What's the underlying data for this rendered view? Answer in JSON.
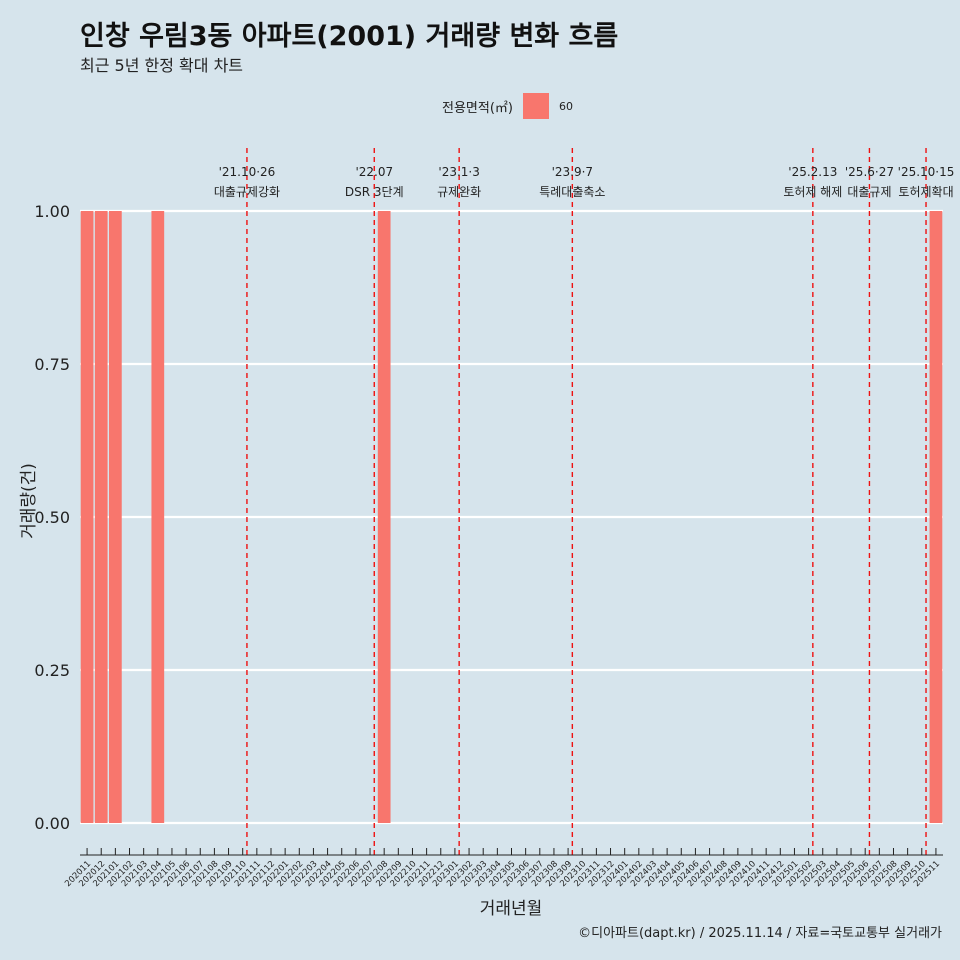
{
  "chart_data": {
    "type": "bar",
    "title": "인창 우림3동 아파트(2001) 거래량 변화 흐름",
    "subtitle": "최근 5년 한정 확대 차트",
    "xlabel": "거래년월",
    "ylabel": "거래량(건)",
    "ylim": [
      0,
      1
    ],
    "yticks": [
      "0.00",
      "0.25",
      "0.50",
      "0.75",
      "1.00"
    ],
    "ytick_values": [
      0,
      0.25,
      0.5,
      0.75,
      1
    ],
    "legend": {
      "title": "전용면적(㎡)",
      "entries": [
        "60"
      ],
      "colors": [
        "#f8766d"
      ],
      "position": "top"
    },
    "categories": [
      "202011",
      "202012",
      "202101",
      "202102",
      "202103",
      "202104",
      "202105",
      "202106",
      "202107",
      "202108",
      "202109",
      "202110",
      "202111",
      "202112",
      "202201",
      "202202",
      "202203",
      "202204",
      "202205",
      "202206",
      "202207",
      "202208",
      "202209",
      "202210",
      "202211",
      "202212",
      "202301",
      "202302",
      "202303",
      "202304",
      "202305",
      "202306",
      "202307",
      "202308",
      "202309",
      "202310",
      "202311",
      "202312",
      "202401",
      "202402",
      "202403",
      "202404",
      "202405",
      "202406",
      "202407",
      "202408",
      "202409",
      "202410",
      "202411",
      "202412",
      "202501",
      "202502",
      "202503",
      "202504",
      "202505",
      "202506",
      "202507",
      "202508",
      "202509",
      "202510",
      "202511"
    ],
    "series": [
      {
        "name": "60",
        "color": "#f8766d",
        "values": [
          1,
          1,
          1,
          0,
          0,
          1,
          0,
          0,
          0,
          0,
          0,
          0,
          0,
          0,
          0,
          0,
          0,
          0,
          0,
          0,
          0,
          1,
          0,
          0,
          0,
          0,
          0,
          0,
          0,
          0,
          0,
          0,
          0,
          0,
          0,
          0,
          0,
          0,
          0,
          0,
          0,
          0,
          0,
          0,
          0,
          0,
          0,
          0,
          0,
          0,
          0,
          0,
          0,
          0,
          0,
          0,
          0,
          0,
          0,
          0,
          1
        ]
      }
    ],
    "annotations": [
      {
        "x": 11.3,
        "date": "'21.10·26",
        "label": "대출규제강화"
      },
      {
        "x": 20.3,
        "date": "'22.07",
        "label": "DSR 3단계"
      },
      {
        "x": 26.3,
        "date": "'23.1·3",
        "label": "규제완화"
      },
      {
        "x": 34.3,
        "date": "'23.9·7",
        "label": "특례대출축소"
      },
      {
        "x": 51.3,
        "date": "'25.2.13",
        "label": "토허제 해제"
      },
      {
        "x": 55.3,
        "date": "'25.6·27",
        "label": "대출규제"
      },
      {
        "x": 59.3,
        "date": "'25.10·15",
        "label": "토허제확대"
      }
    ],
    "grid": true
  },
  "caption": "©디아파트(dapt.kr) / 2025.11.14 / 자료=국토교통부 실거래가"
}
